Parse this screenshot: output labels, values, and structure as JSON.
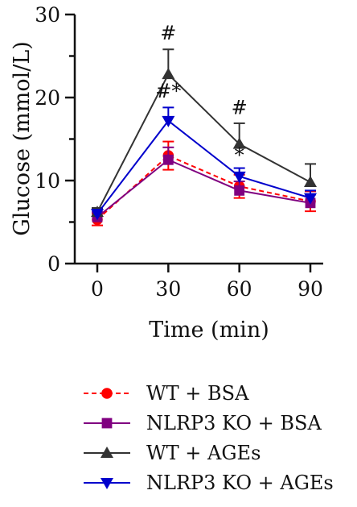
{
  "chart_data": {
    "type": "line",
    "xlabel": "Time (min)",
    "ylabel": "Glucose (mmol/L)",
    "x": [
      0,
      30,
      60,
      90
    ],
    "xticks": [
      "0",
      "30",
      "60",
      "90"
    ],
    "ylim": [
      0,
      30
    ],
    "yticks": [
      "0",
      "10",
      "20",
      "30"
    ],
    "grid": false,
    "legend_position": "bottom",
    "series": [
      {
        "name": "WT + BSA",
        "values": [
          5.3,
          13.0,
          9.3,
          7.5
        ],
        "errors": [
          0.7,
          1.7,
          1.4,
          1.2
        ],
        "color": "#ff0000",
        "marker": "circle",
        "line": "dashed"
      },
      {
        "name": "NLRP3 KO + BSA",
        "values": [
          5.6,
          12.5,
          8.8,
          7.3
        ],
        "errors": [
          0.6,
          1.5,
          1.1,
          1.0
        ],
        "color": "#800080",
        "marker": "square",
        "line": "solid"
      },
      {
        "name": "WT + AGEs",
        "values": [
          6.2,
          22.8,
          14.4,
          9.8
        ],
        "errors": [
          0.5,
          3.0,
          2.5,
          2.2
        ],
        "color": "#333333",
        "marker": "triangle-up",
        "line": "solid"
      },
      {
        "name": "NLRP3 KO + AGEs",
        "values": [
          6.0,
          17.2,
          10.5,
          7.9
        ],
        "errors": [
          0.5,
          1.6,
          1.0,
          0.9
        ],
        "color": "#0000cc",
        "marker": "triangle-down",
        "line": "solid"
      }
    ],
    "annotations": [
      {
        "text": "#",
        "x": 30,
        "y": 27.0
      },
      {
        "text": "#*",
        "x": 30,
        "y": 20.0
      },
      {
        "text": "#",
        "x": 60,
        "y": 18.0
      },
      {
        "text": "*",
        "x": 60,
        "y": 12.3
      }
    ]
  }
}
